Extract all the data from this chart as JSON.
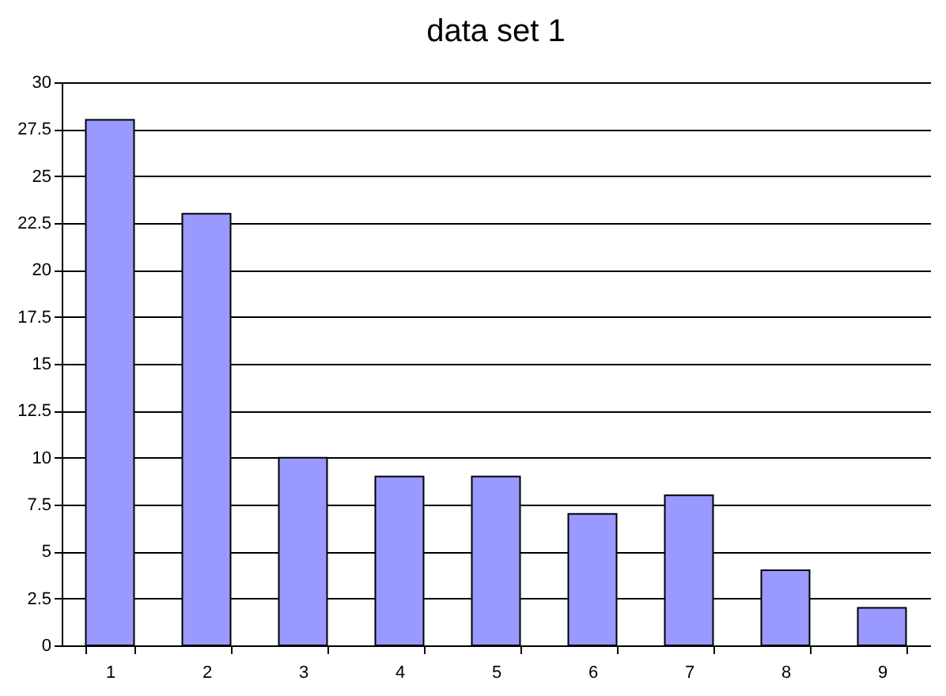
{
  "chart_data": {
    "type": "bar",
    "title": "data set 1",
    "categories": [
      "1",
      "2",
      "3",
      "4",
      "5",
      "6",
      "7",
      "8",
      "9"
    ],
    "values": [
      28,
      23,
      10,
      9,
      9,
      7,
      8,
      4,
      2
    ],
    "color": "#9999ff",
    "ylim": [
      0,
      30
    ],
    "yticks": [
      0,
      2.5,
      5,
      7.5,
      10,
      12.5,
      15,
      17.5,
      20,
      22.5,
      25,
      27.5,
      30
    ],
    "grid": "y"
  }
}
